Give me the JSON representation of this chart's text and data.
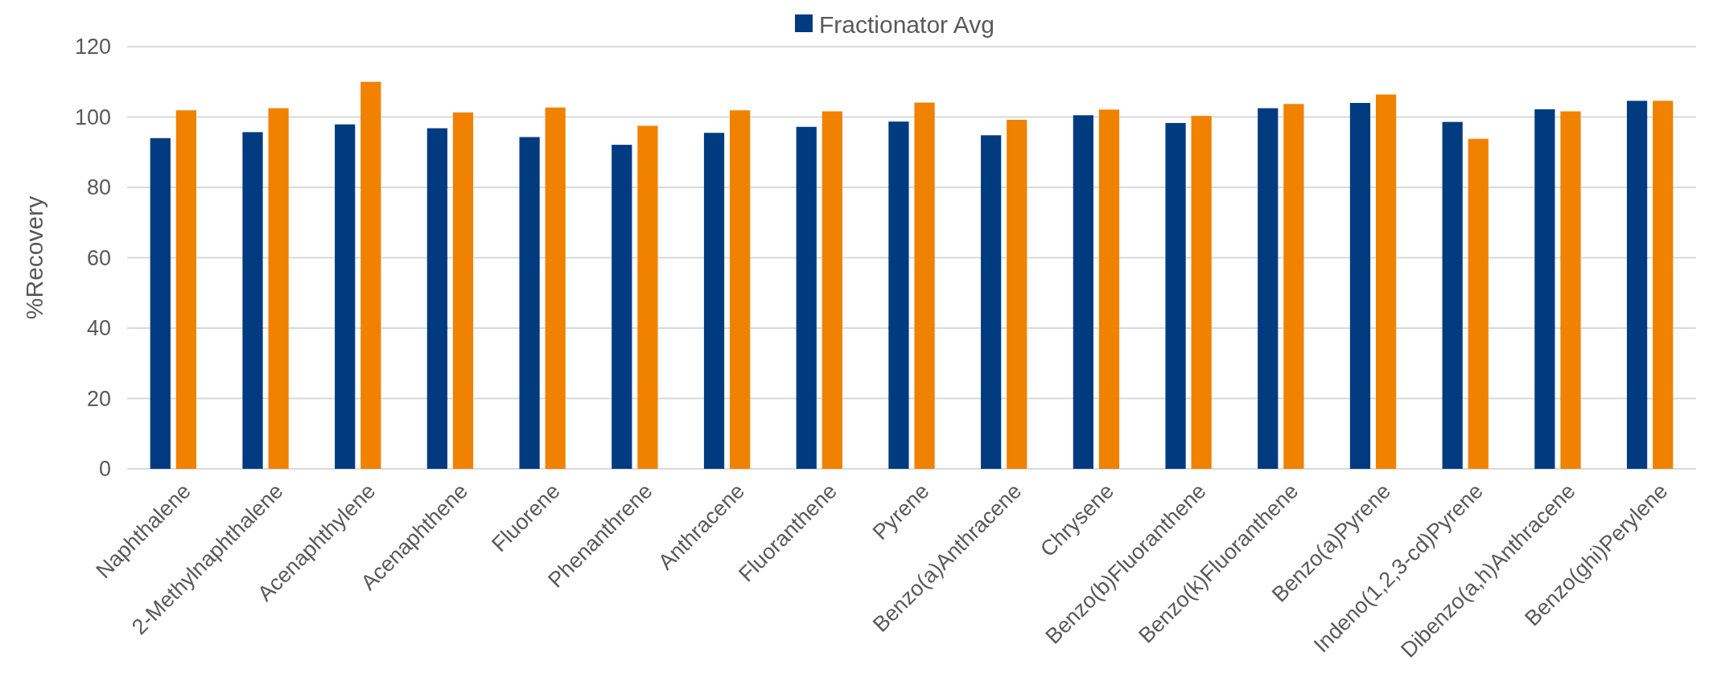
{
  "chart_data": {
    "type": "bar",
    "ylabel": "%Recovery",
    "categories": [
      "Naphthalene",
      "2-Methylnaphthalene",
      "Acenaphthylene",
      "Acenaphthene",
      "Fluorene",
      "Phenanthrene",
      "Anthracene",
      "Fluoranthene",
      "Pyrene",
      "Benzo(a)Anthracene",
      "Chrysene",
      "Benzo(b)Fluoranthene",
      "Benzo(k)Fluoranthene",
      "Benzo(a)Pyrene",
      "Indeno(1,2,3-cd)Pyrene",
      "Dibenzo(a,h)Anthracene",
      "Benzo(ghi)Perylene"
    ],
    "series": [
      {
        "name": "Fractionator Avg",
        "color": "#003b80",
        "values": [
          94,
          95.7,
          97.9,
          96.8,
          94.3,
          92.1,
          95.5,
          97.2,
          98.7,
          94.8,
          100.5,
          98.3,
          102.5,
          104,
          98.6,
          102.2,
          104.6
        ]
      },
      {
        "color": "#f08200",
        "values": [
          101.9,
          102.5,
          110,
          101.3,
          102.7,
          97.5,
          101.9,
          101.6,
          104.1,
          99.2,
          102.1,
          100.3,
          103.7,
          106.4,
          93.8,
          101.6,
          104.6
        ]
      }
    ],
    "ylim": [
      0,
      120
    ],
    "yticks": [
      0,
      20,
      40,
      60,
      80,
      100,
      120
    ],
    "grid": "y",
    "legend": "top"
  }
}
